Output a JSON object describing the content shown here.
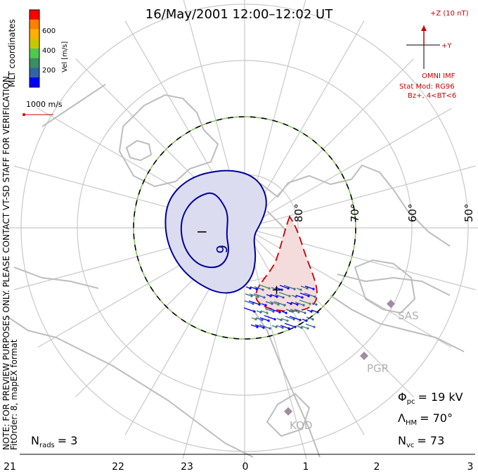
{
  "title": "16/May/2001  12:00–12:02  UT",
  "colorbar": {
    "label": "Vel [m/s]",
    "ticks": [
      "600",
      "400",
      "200"
    ],
    "colors": [
      "#ff0000",
      "#ff8000",
      "#ffb000",
      "#c8c800",
      "#50c850",
      "#3c8c64",
      "#3264a0",
      "#0000ff"
    ]
  },
  "coords_label": "MLT coordinates",
  "vector_scale": "1000 m/s",
  "side_note": "NOTE: FOR PREVIEW PURPOSES ONLY. PLEASE CONTACT VT-SD STAFF FOR VERIFICATION.",
  "fit_note": "FitOrder: 8, mapEX format",
  "imf": {
    "z_label": "+Z (10 nT)",
    "y_label": "+Y",
    "source": "OMNI IMF",
    "model": "Stat Mod: RG96",
    "condition": "Bz+, 4<BT<6"
  },
  "lat_labels": [
    "80°",
    "70°",
    "60°",
    "50°"
  ],
  "mlt_labels": [
    "21",
    "22",
    "23",
    "0",
    "1",
    "2",
    "3"
  ],
  "stations": [
    "SAS",
    "PGR",
    "KOD"
  ],
  "contours": {
    "min_label": "−",
    "min_value": "6",
    "max_label": "+"
  },
  "stats": {
    "phi_sym": "Φ",
    "phi_sub": "pc",
    "phi_val": "= 19 kV",
    "lam_sym": "Λ",
    "lam_sub": "HM",
    "lam_val": "= 70°",
    "n_sym": "N",
    "n_sub": "vc",
    "n_val": "= 73",
    "rads_sym": "N",
    "rads_sub": "rads",
    "rads_val": "= 3"
  },
  "colors": {
    "grid": "#c8c8c8",
    "land": "#c0c0c0",
    "negative_contour": "#00009a",
    "negative_fill": "#dcdcf0",
    "positive_contour": "#c80000",
    "positive_fill": "#f5dcdc",
    "boundary_dash": "#88c860",
    "station": "#a08ca0"
  }
}
